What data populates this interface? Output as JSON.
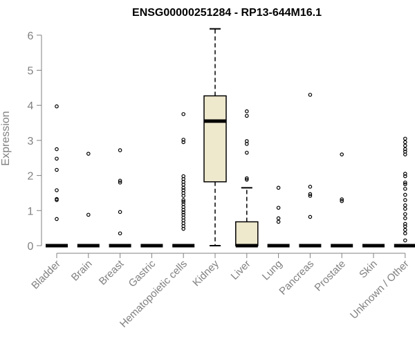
{
  "chart_data": {
    "type": "boxplot",
    "title": "ENSG00000251284 - RP13-644M16.1",
    "xlabel": "",
    "ylabel": "Expression",
    "ylim": [
      0,
      6.2
    ],
    "yticks": [
      0,
      1,
      2,
      3,
      4,
      5,
      6
    ],
    "box_fill": "#EEE8CD",
    "categories": [
      "Bladder",
      "Brain",
      "Breast",
      "Gastric",
      "Hematopoietic cells",
      "Kidney",
      "Liver",
      "Lung",
      "Pancreas",
      "Prostate",
      "Skin",
      "Unknown / Other"
    ],
    "boxes": [
      {
        "q1": 0,
        "median": 0,
        "q3": 0,
        "whisker_low": 0,
        "whisker_high": 0,
        "outliers": [
          3.97,
          2.75,
          2.48,
          2.16,
          1.58,
          1.33,
          1.3,
          0.76
        ]
      },
      {
        "q1": 0,
        "median": 0,
        "q3": 0,
        "whisker_low": 0,
        "whisker_high": 0,
        "outliers": [
          2.62,
          0.88
        ]
      },
      {
        "q1": 0,
        "median": 0,
        "q3": 0,
        "whisker_low": 0,
        "whisker_high": 0,
        "outliers": [
          2.72,
          1.85,
          1.8,
          0.96,
          0.35
        ]
      },
      {
        "q1": 0,
        "median": 0,
        "q3": 0,
        "whisker_low": 0,
        "whisker_high": 0,
        "outliers": []
      },
      {
        "q1": 0,
        "median": 0,
        "q3": 0,
        "whisker_low": 0,
        "whisker_high": 0,
        "outliers": [
          3.75,
          3.02,
          2.95,
          1.98,
          1.9,
          1.82,
          1.74,
          1.65,
          1.58,
          1.5,
          1.42,
          1.3,
          1.25,
          1.18,
          1.1,
          1.02,
          0.95,
          0.88,
          0.8,
          0.72,
          0.64,
          0.56,
          0.48
        ]
      },
      {
        "q1": 1.82,
        "median": 3.55,
        "q3": 4.27,
        "whisker_low": 0,
        "whisker_high": 6.18,
        "outliers": []
      },
      {
        "q1": 0,
        "median": 0,
        "q3": 0.68,
        "whisker_low": 0,
        "whisker_high": 1.65,
        "outliers": [
          3.83,
          3.7,
          2.98,
          2.9,
          2.65,
          1.92,
          1.88
        ]
      },
      {
        "q1": 0,
        "median": 0,
        "q3": 0,
        "whisker_low": 0,
        "whisker_high": 0,
        "outliers": [
          1.65,
          1.08,
          0.78,
          0.68
        ]
      },
      {
        "q1": 0,
        "median": 0,
        "q3": 0,
        "whisker_low": 0,
        "whisker_high": 0,
        "outliers": [
          4.3,
          1.68,
          1.47,
          1.42,
          0.82
        ]
      },
      {
        "q1": 0,
        "median": 0,
        "q3": 0,
        "whisker_low": 0,
        "whisker_high": 0,
        "outliers": [
          2.6,
          1.32,
          1.27
        ]
      },
      {
        "q1": 0,
        "median": 0,
        "q3": 0,
        "whisker_low": 0,
        "whisker_high": 0,
        "outliers": []
      },
      {
        "q1": 0,
        "median": 0,
        "q3": 0,
        "whisker_low": 0,
        "whisker_high": 0,
        "outliers": [
          3.05,
          2.95,
          2.85,
          2.75,
          2.68,
          2.6,
          2.05,
          1.98,
          1.8,
          1.75,
          1.62,
          1.45,
          1.3,
          1.15,
          1.05,
          0.9,
          0.78,
          0.62,
          0.55,
          0.45,
          0.35,
          0.15
        ]
      }
    ]
  }
}
